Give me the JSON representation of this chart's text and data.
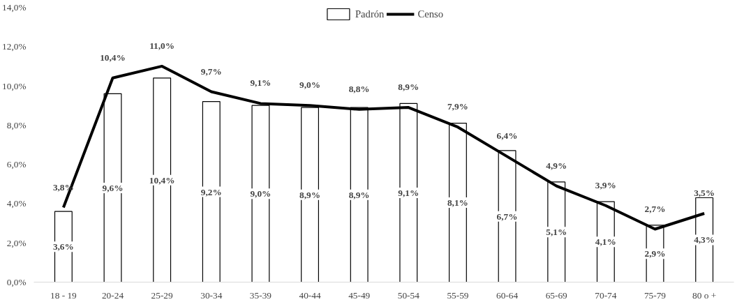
{
  "chart_data": {
    "type": "bar",
    "categories": [
      "18 - 19",
      "20-24",
      "25-29",
      "30-34",
      "35-39",
      "40-44",
      "45-49",
      "50-54",
      "55-59",
      "60-64",
      "65-69",
      "70-74",
      "75-79",
      "80 o +"
    ],
    "series": [
      {
        "name": "Padrón",
        "color": "#ffffff",
        "values": [
          3.6,
          9.6,
          10.4,
          9.2,
          9.0,
          8.9,
          8.9,
          9.1,
          8.1,
          6.7,
          5.1,
          4.1,
          2.9,
          4.3
        ],
        "value_labels": [
          "3,6%",
          "9,6%",
          "10,4%",
          "9,2%",
          "9,0%",
          "8,9%",
          "8,9%",
          "9,1%",
          "8,1%",
          "6,7%",
          "5,1%",
          "4,1%",
          "2,9%",
          "4,3%"
        ]
      },
      {
        "name": "Censo",
        "type": "line",
        "color": "#000000",
        "values": [
          3.8,
          10.4,
          11.0,
          9.7,
          9.1,
          9.0,
          8.8,
          8.9,
          7.9,
          6.4,
          4.9,
          3.9,
          2.7,
          3.5
        ],
        "value_labels": [
          "3,8%",
          "10,4%",
          "11,0%",
          "9,7%",
          "9,1%",
          "9,0%",
          "8,8%",
          "8,9%",
          "7,9%",
          "6,4%",
          "4,9%",
          "3,9%",
          "2,7%",
          "3,5%"
        ]
      }
    ],
    "ylim": [
      0,
      14
    ],
    "yticks": [
      {
        "value": 0,
        "label": "0,0%"
      },
      {
        "value": 2,
        "label": "2,0%"
      },
      {
        "value": 4,
        "label": "4,0%"
      },
      {
        "value": 6,
        "label": "6,0%"
      },
      {
        "value": 8,
        "label": "8,0%"
      },
      {
        "value": 10,
        "label": "10,0%"
      },
      {
        "value": 12,
        "label": "12,0%"
      },
      {
        "value": 14,
        "label": "14,0%"
      }
    ],
    "grid": false,
    "legend": "top"
  }
}
